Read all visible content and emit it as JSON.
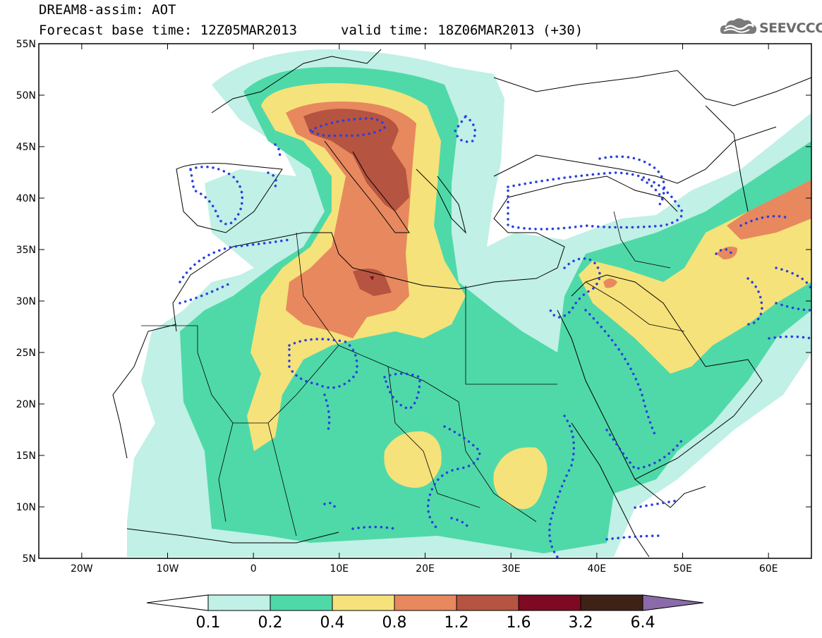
{
  "header": {
    "title_line1": "DREAM8-assim: AOT",
    "title_line2": "Forecast base time: 12Z05MAR2013",
    "valid_time": "valid time: 18Z06MAR2013 (+30)",
    "logo_text": "SEEVCCC"
  },
  "map": {
    "lon_range": [
      -25,
      65
    ],
    "lat_range": [
      5,
      55
    ],
    "lat_labels": [
      "55N",
      "50N",
      "45N",
      "40N",
      "35N",
      "30N",
      "25N",
      "20N",
      "15N",
      "10N",
      "5N"
    ],
    "lon_labels": [
      "20W",
      "10W",
      "0",
      "10E",
      "20E",
      "30E",
      "40E",
      "50E",
      "60E"
    ],
    "background_color": "#ffffff",
    "coastline_color": "#000000",
    "contour_color": "#2a3fe0"
  },
  "colorbar": {
    "labels": [
      "0.1",
      "0.2",
      "0.4",
      "0.8",
      "1.2",
      "1.6",
      "3.2",
      "6.4"
    ],
    "colors": [
      "#ffffff",
      "#c0f0e6",
      "#4fd9a8",
      "#f6e27a",
      "#e8885e",
      "#b55440",
      "#7d0a22",
      "#3f2216",
      "#8a6aa8"
    ]
  }
}
